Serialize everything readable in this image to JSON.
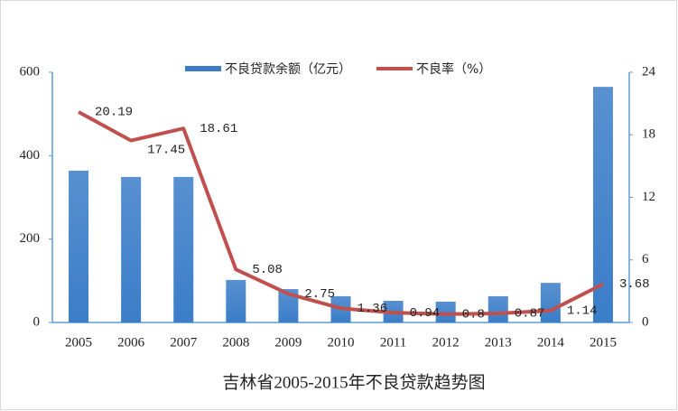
{
  "chart_data": {
    "type": "combo",
    "title": "吉林省2005-2015年不良贷款趋势图",
    "categories": [
      "2005",
      "2006",
      "2007",
      "2008",
      "2009",
      "2010",
      "2011",
      "2012",
      "2013",
      "2014",
      "2015"
    ],
    "series": [
      {
        "name": "不良贷款余额（亿元）",
        "type": "bar",
        "color": "#3b7dc8",
        "values": [
          364,
          349,
          349,
          102,
          80,
          63,
          52,
          50,
          63,
          95,
          565
        ]
      },
      {
        "name": "不良率（%）",
        "type": "line",
        "axis": "y2",
        "color": "#c0504d",
        "values": [
          20.19,
          17.45,
          18.61,
          5.08,
          2.75,
          1.36,
          0.94,
          0.8,
          0.87,
          1.14,
          3.68
        ]
      }
    ],
    "ylim": [
      0,
      600
    ],
    "yticks": [
      0,
      200,
      400,
      600
    ],
    "y2lim": [
      0,
      24
    ],
    "y2ticks": [
      0,
      6,
      12,
      18,
      24
    ],
    "legend": "top"
  }
}
